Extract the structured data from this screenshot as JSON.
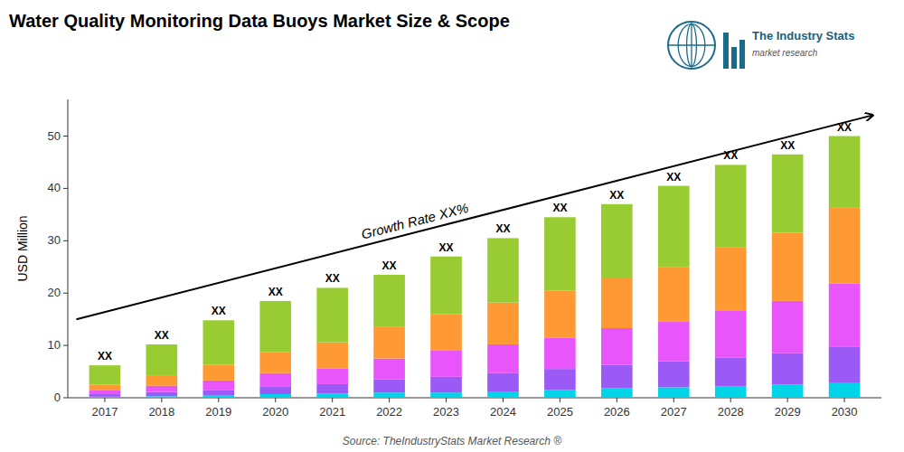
{
  "chart_data": {
    "type": "bar",
    "stacked": true,
    "grid": false,
    "title": "Water Quality Monitoring Data Buoys Market Size & Scope",
    "y_label": "USD Million",
    "source": "Source: TheIndustryStats Market Research ®",
    "logo_texts": [
      "The Industry Stats",
      "market research"
    ],
    "bar_label": "XX",
    "growth_label": "Growth Rate XX%",
    "growth_arrow": {
      "start": 15.0,
      "end": 54.0
    },
    "categories": [
      "2017",
      "2018",
      "2019",
      "2020",
      "2021",
      "2022",
      "2023",
      "2024",
      "2025",
      "2026",
      "2027",
      "2028",
      "2029",
      "2030"
    ],
    "series": [
      {
        "color": "#00d4e8",
        "values": [
          0.2,
          0.3,
          0.5,
          0.7,
          0.8,
          1.0,
          1.0,
          1.2,
          1.5,
          1.8,
          2.0,
          2.2,
          2.5,
          2.8
        ]
      },
      {
        "color": "#9b59f5",
        "values": [
          0.5,
          0.8,
          1.0,
          1.5,
          1.8,
          2.5,
          3.0,
          3.5,
          4.0,
          4.5,
          5.0,
          5.5,
          6.0,
          7.0
        ]
      },
      {
        "color": "#e855fb",
        "values": [
          0.8,
          1.2,
          1.8,
          2.5,
          3.0,
          4.0,
          5.0,
          5.5,
          6.0,
          7.0,
          7.5,
          9.0,
          10.0,
          12.0
        ]
      },
      {
        "color": "#ff9933",
        "values": [
          1.0,
          2.0,
          3.0,
          4.0,
          5.0,
          6.0,
          7.0,
          8.0,
          9.0,
          9.5,
          10.5,
          12.0,
          13.0,
          14.5
        ]
      },
      {
        "color": "#99cc33",
        "values": [
          3.7,
          5.9,
          8.5,
          9.8,
          10.4,
          10.0,
          11.0,
          12.3,
          14.0,
          14.2,
          15.5,
          15.8,
          15.0,
          13.7
        ]
      }
    ],
    "ylim": [
      0,
      57
    ],
    "yticks": [
      0,
      10,
      20,
      30,
      40,
      50
    ]
  }
}
